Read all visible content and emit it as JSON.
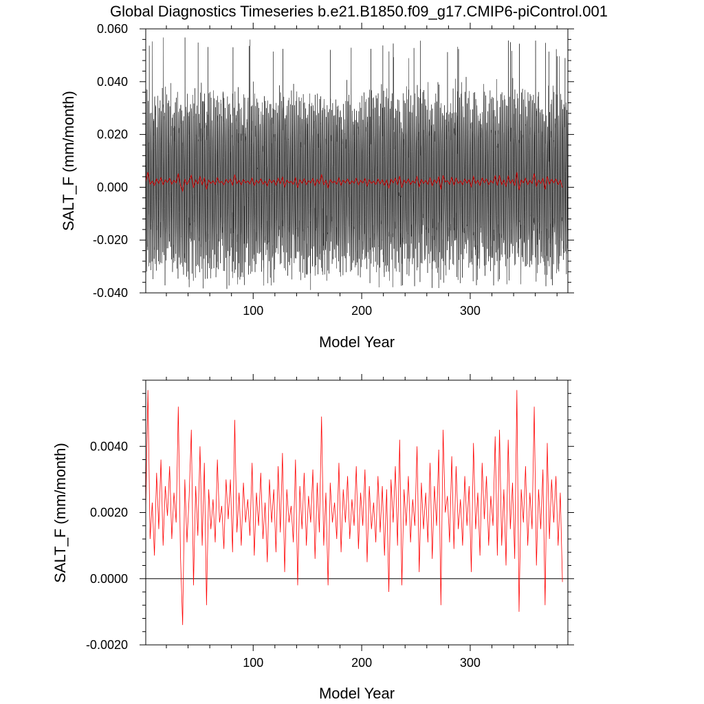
{
  "figure": {
    "title": "Global Diagnostics Timeseries b.e21.B1850.f09_g17.CMIP6-piControl.001"
  },
  "chart_data": [
    {
      "type": "line",
      "title": "Global Diagnostics Timeseries b.e21.B1850.f09_g17.CMIP6-piControl.001",
      "xlabel": "Model Year",
      "ylabel": "SALT_F (mm/month)",
      "xlim": [
        1,
        390
      ],
      "ylim": [
        -0.04,
        0.06
      ],
      "xticks": [
        100,
        200,
        300
      ],
      "xtick_labels": [
        "100",
        "200",
        "300"
      ],
      "yticks": [
        -0.04,
        -0.02,
        0.0,
        0.02,
        0.04,
        0.06
      ],
      "ytick_labels": [
        "-0.040",
        "-0.020",
        "0.000",
        "0.020",
        "0.040",
        "0.060"
      ],
      "grid": false,
      "series": [
        {
          "color": "#000000",
          "resolution": "monthly",
          "description_values": {
            "mean": 0.002,
            "typical_max": 0.04,
            "typical_min": -0.03,
            "absolute_max": 0.057,
            "absolute_min": -0.039
          }
        },
        {
          "color": "#cc0000",
          "resolution": "annual",
          "same_as": "lower_panel_annual"
        }
      ]
    },
    {
      "type": "line",
      "xlabel": "Model Year",
      "ylabel": "SALT_F (mm/month)",
      "xlim": [
        1,
        390
      ],
      "ylim": [
        -0.002,
        0.006
      ],
      "xticks": [
        100,
        200,
        300
      ],
      "xtick_labels": [
        "100",
        "200",
        "300"
      ],
      "yticks": [
        -0.002,
        0.0,
        0.002,
        0.004
      ],
      "ytick_labels": [
        "-0.0020",
        "0.0000",
        "0.0020",
        "0.0040"
      ],
      "reference_line": 0.0,
      "grid": false,
      "series": [
        {
          "color": "#ff0000",
          "resolution": "annual",
          "x_start": 1,
          "x_step": 2,
          "values": [
            0.0021,
            0.0057,
            0.0012,
            0.0023,
            0.0007,
            0.0032,
            0.0015,
            0.0036,
            0.001,
            0.0028,
            0.0019,
            0.0034,
            0.0012,
            0.0026,
            0.0017,
            0.0052,
            0.0007,
            -0.0014,
            0.003,
            0.0011,
            0.0025,
            0.0045,
            -0.0002,
            0.0028,
            0.0013,
            0.004,
            0.001,
            0.0035,
            -0.0008,
            0.0027,
            0.0015,
            0.0024,
            0.0011,
            0.0036,
            0.0017,
            0.0022,
            0.0009,
            0.003,
            0.0018,
            0.003,
            0.0008,
            0.0048,
            0.0014,
            0.0026,
            0.001,
            0.0029,
            0.0017,
            0.0024,
            0.0013,
            0.0035,
            0.0007,
            0.0026,
            0.0016,
            0.0032,
            0.0012,
            0.0023,
            0.0005,
            0.003,
            0.0017,
            0.0027,
            0.0008,
            0.0034,
            0.0014,
            0.0038,
            0.0002,
            0.0027,
            0.0017,
            0.0022,
            0.0011,
            0.0036,
            -0.0002,
            0.0028,
            0.0015,
            0.0032,
            0.001,
            0.0025,
            0.0017,
            0.0033,
            0.0006,
            0.0029,
            0.0014,
            0.0049,
            0.001,
            0.0026,
            -0.0002,
            0.0029,
            0.0017,
            0.0023,
            0.0012,
            0.0035,
            0.0008,
            0.0027,
            0.0017,
            0.0031,
            0.0012,
            0.0024,
            0.0016,
            0.0034,
            0.0009,
            0.0026,
            0.0016,
            0.0033,
            0.0005,
            0.0028,
            0.0015,
            0.0023,
            0.0011,
            0.0031,
            0.0014,
            0.0028,
            0.0007,
            0.0027,
            -0.0004,
            0.003,
            0.0017,
            0.0034,
            0.001,
            0.0042,
            -0.0002,
            0.0027,
            0.0016,
            0.0031,
            0.0011,
            0.0024,
            0.0016,
            0.004,
            0.0002,
            0.0029,
            0.0015,
            0.0026,
            0.0011,
            0.0035,
            0.0006,
            0.0028,
            0.0016,
            0.0039,
            -0.0008,
            0.0045,
            0.002,
            0.0025,
            0.0011,
            0.0037,
            0.0009,
            0.0034,
            0.0015,
            0.0024,
            0.001,
            0.0031,
            0.0016,
            0.0028,
            0.0002,
            0.0041,
            0.0015,
            0.0026,
            0.0007,
            0.0035,
            0.0018,
            0.0031,
            0.001,
            0.0025,
            0.0016,
            0.0043,
            0.0007,
            0.0045,
            0.001,
            0.0027,
            0.0004,
            0.0042,
            0.0015,
            0.0029,
            0.0006,
            0.0057,
            -0.001,
            0.0027,
            0.0017,
            0.0034,
            0.001,
            0.0026,
            0.0015,
            0.0052,
            0.0004,
            0.0027,
            0.0015,
            0.0033,
            -0.0008,
            0.0041,
            0.0012,
            0.003,
            0.0017,
            0.0031,
            0.001,
            0.0026,
            -0.0001
          ]
        }
      ]
    }
  ]
}
